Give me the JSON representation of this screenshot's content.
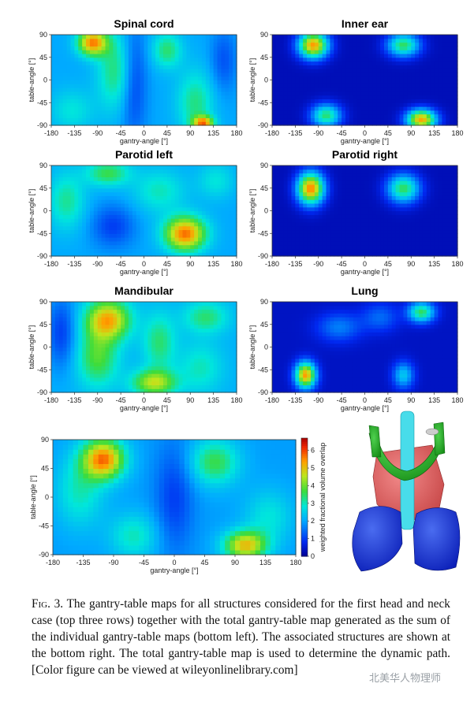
{
  "figure": {
    "caption_label": "Fig. 3.",
    "caption_text": "The gantry-table maps for all structures considered for the first head and neck case (top three rows) together with the total gantry-table map generated as the sum of the individual gantry-table maps (bottom left). The associated structures are shown at the bottom right. The total gantry-table map is used to determine the dynamic path. [Color figure can be viewed at wileyonlinelibrary.com]",
    "watermark": "北美华人物理师"
  },
  "colorbar": {
    "label": "weighted fractional volume overlap",
    "ticks": [
      "0",
      "1",
      "2",
      "3",
      "4",
      "5",
      "6"
    ],
    "range": [
      0,
      6.7
    ]
  },
  "chart_data": [
    {
      "type": "heatmap",
      "title": "Spinal cord",
      "title_color": "#38d7e7",
      "xlabel": "gantry-angle [°]",
      "ylabel": "table-angle [°]",
      "xlim": [
        -180,
        180
      ],
      "ylim": [
        -90,
        90
      ],
      "xticks": [
        -180,
        -135,
        -90,
        -45,
        0,
        45,
        90,
        135,
        180
      ],
      "yticks": [
        90,
        45,
        0,
        -45,
        -90
      ],
      "background": 2.0,
      "blobs": [
        {
          "x": -100,
          "y": 75,
          "v": 5.5,
          "sx": 20,
          "sy": 18
        },
        {
          "x": -55,
          "y": 20,
          "v": 3.4,
          "sx": 25,
          "sy": 55
        },
        {
          "x": 45,
          "y": 60,
          "v": 3.4,
          "sx": 20,
          "sy": 25
        },
        {
          "x": 100,
          "y": -45,
          "v": 3.3,
          "sx": 25,
          "sy": 45
        },
        {
          "x": 115,
          "y": -85,
          "v": 5.2,
          "sx": 14,
          "sy": 10
        },
        {
          "x": -140,
          "y": -60,
          "v": 2.8,
          "sx": 30,
          "sy": 30
        },
        {
          "x": -20,
          "y": 0,
          "v": 0.9,
          "sx": 18,
          "sy": 80
        },
        {
          "x": 155,
          "y": 40,
          "v": 1.2,
          "sx": 18,
          "sy": 45
        }
      ]
    },
    {
      "type": "heatmap",
      "title": "Inner ear",
      "title_color": "#9a9a9a",
      "xlabel": "gantry-angle [°]",
      "ylabel": "table-angle [°]",
      "xlim": [
        -180,
        180
      ],
      "ylim": [
        -90,
        90
      ],
      "xticks": [
        -180,
        -135,
        -90,
        -45,
        0,
        45,
        90,
        135,
        180
      ],
      "yticks": [
        90,
        45,
        0,
        -45,
        -90
      ],
      "background": 0.3,
      "blobs": [
        {
          "x": -100,
          "y": 70,
          "v": 5.4,
          "sx": 20,
          "sy": 18
        },
        {
          "x": 75,
          "y": 70,
          "v": 3.5,
          "sx": 22,
          "sy": 16
        },
        {
          "x": -75,
          "y": -70,
          "v": 3.4,
          "sx": 20,
          "sy": 16
        },
        {
          "x": 110,
          "y": -78,
          "v": 5.3,
          "sx": 20,
          "sy": 14
        }
      ]
    },
    {
      "type": "heatmap",
      "title": "Parotid left",
      "title_color": "#33bb33",
      "xlabel": "gantry-angle [°]",
      "ylabel": "table-angle [°]",
      "xlim": [
        -180,
        180
      ],
      "ylim": [
        -90,
        90
      ],
      "xticks": [
        -180,
        -135,
        -90,
        -45,
        0,
        45,
        90,
        135,
        180
      ],
      "yticks": [
        90,
        45,
        0,
        -45,
        -90
      ],
      "background": 2.0,
      "blobs": [
        {
          "x": 80,
          "y": -45,
          "v": 5.7,
          "sx": 28,
          "sy": 24
        },
        {
          "x": -70,
          "y": 75,
          "v": 3.6,
          "sx": 30,
          "sy": 18
        },
        {
          "x": -150,
          "y": 20,
          "v": 3.2,
          "sx": 25,
          "sy": 40
        },
        {
          "x": 30,
          "y": 40,
          "v": 3.0,
          "sx": 35,
          "sy": 30
        },
        {
          "x": 140,
          "y": 60,
          "v": 2.8,
          "sx": 25,
          "sy": 25
        },
        {
          "x": -60,
          "y": -30,
          "v": 1.0,
          "sx": 30,
          "sy": 30
        }
      ]
    },
    {
      "type": "heatmap",
      "title": "Parotid right",
      "title_color": "#33bb33",
      "xlabel": "gantry-angle [°]",
      "ylabel": "table-angle [°]",
      "xlim": [
        -180,
        180
      ],
      "ylim": [
        -90,
        90
      ],
      "xticks": [
        -180,
        -135,
        -90,
        -45,
        0,
        45,
        90,
        135,
        180
      ],
      "yticks": [
        90,
        45,
        0,
        -45,
        -90
      ],
      "background": 0.3,
      "blobs": [
        {
          "x": -105,
          "y": 45,
          "v": 5.6,
          "sx": 18,
          "sy": 22
        },
        {
          "x": 75,
          "y": 45,
          "v": 3.5,
          "sx": 22,
          "sy": 20
        }
      ]
    },
    {
      "type": "heatmap",
      "title": "Mandibular",
      "title_color": "#228b22",
      "xlabel": "gantry-angle [°]",
      "ylabel": "table-angle [°]",
      "xlim": [
        -180,
        180
      ],
      "ylim": [
        -90,
        90
      ],
      "xticks": [
        -180,
        -135,
        -90,
        -45,
        0,
        45,
        90,
        135,
        180
      ],
      "yticks": [
        90,
        45,
        0,
        -45,
        -90
      ],
      "background": 2.1,
      "blobs": [
        {
          "x": -70,
          "y": 55,
          "v": 5.2,
          "sx": 30,
          "sy": 28
        },
        {
          "x": -90,
          "y": -20,
          "v": 3.8,
          "sx": 28,
          "sy": 40
        },
        {
          "x": 20,
          "y": -70,
          "v": 4.5,
          "sx": 30,
          "sy": 18
        },
        {
          "x": 30,
          "y": 10,
          "v": 3.4,
          "sx": 22,
          "sy": 40
        },
        {
          "x": 120,
          "y": 60,
          "v": 3.4,
          "sx": 30,
          "sy": 22
        },
        {
          "x": 110,
          "y": -40,
          "v": 3.0,
          "sx": 30,
          "sy": 35
        },
        {
          "x": -160,
          "y": 30,
          "v": 1.0,
          "sx": 20,
          "sy": 50
        }
      ]
    },
    {
      "type": "heatmap",
      "title": "Lung",
      "title_color": "#2a6fd6",
      "xlabel": "gantry-angle [°]",
      "ylabel": "table-angle [°]",
      "xlim": [
        -180,
        180
      ],
      "ylim": [
        -90,
        90
      ],
      "xticks": [
        -180,
        -135,
        -90,
        -45,
        0,
        45,
        90,
        135,
        180
      ],
      "yticks": [
        90,
        45,
        0,
        -45,
        -90
      ],
      "background": 0.4,
      "blobs": [
        {
          "x": -115,
          "y": -55,
          "v": 5.4,
          "sx": 14,
          "sy": 18
        },
        {
          "x": 110,
          "y": 70,
          "v": 3.5,
          "sx": 18,
          "sy": 14
        },
        {
          "x": 75,
          "y": -55,
          "v": 2.4,
          "sx": 14,
          "sy": 18
        },
        {
          "x": -50,
          "y": 40,
          "v": 1.6,
          "sx": 30,
          "sy": 20
        },
        {
          "x": 30,
          "y": 60,
          "v": 1.4,
          "sx": 25,
          "sy": 20
        }
      ]
    },
    {
      "type": "heatmap",
      "title": "",
      "title_color": "#000000",
      "xlabel": "gantry-angle [°]",
      "ylabel": "table-angle [°]",
      "xlim": [
        -180,
        180
      ],
      "ylim": [
        -90,
        90
      ],
      "xticks": [
        -180,
        -135,
        -90,
        -45,
        0,
        45,
        90,
        135,
        180
      ],
      "yticks": [
        90,
        45,
        0,
        -45,
        -90
      ],
      "background": 1.9,
      "blobs": [
        {
          "x": -105,
          "y": 60,
          "v": 5.6,
          "sx": 22,
          "sy": 22
        },
        {
          "x": 105,
          "y": -75,
          "v": 5.0,
          "sx": 22,
          "sy": 16
        },
        {
          "x": 60,
          "y": 55,
          "v": 3.6,
          "sx": 25,
          "sy": 25
        },
        {
          "x": -140,
          "y": 10,
          "v": 3.0,
          "sx": 25,
          "sy": 40
        },
        {
          "x": -60,
          "y": -60,
          "v": 3.0,
          "sx": 25,
          "sy": 25
        },
        {
          "x": 140,
          "y": -30,
          "v": 2.8,
          "sx": 25,
          "sy": 30
        },
        {
          "x": 0,
          "y": 0,
          "v": 1.0,
          "sx": 20,
          "sy": 60
        }
      ]
    }
  ]
}
